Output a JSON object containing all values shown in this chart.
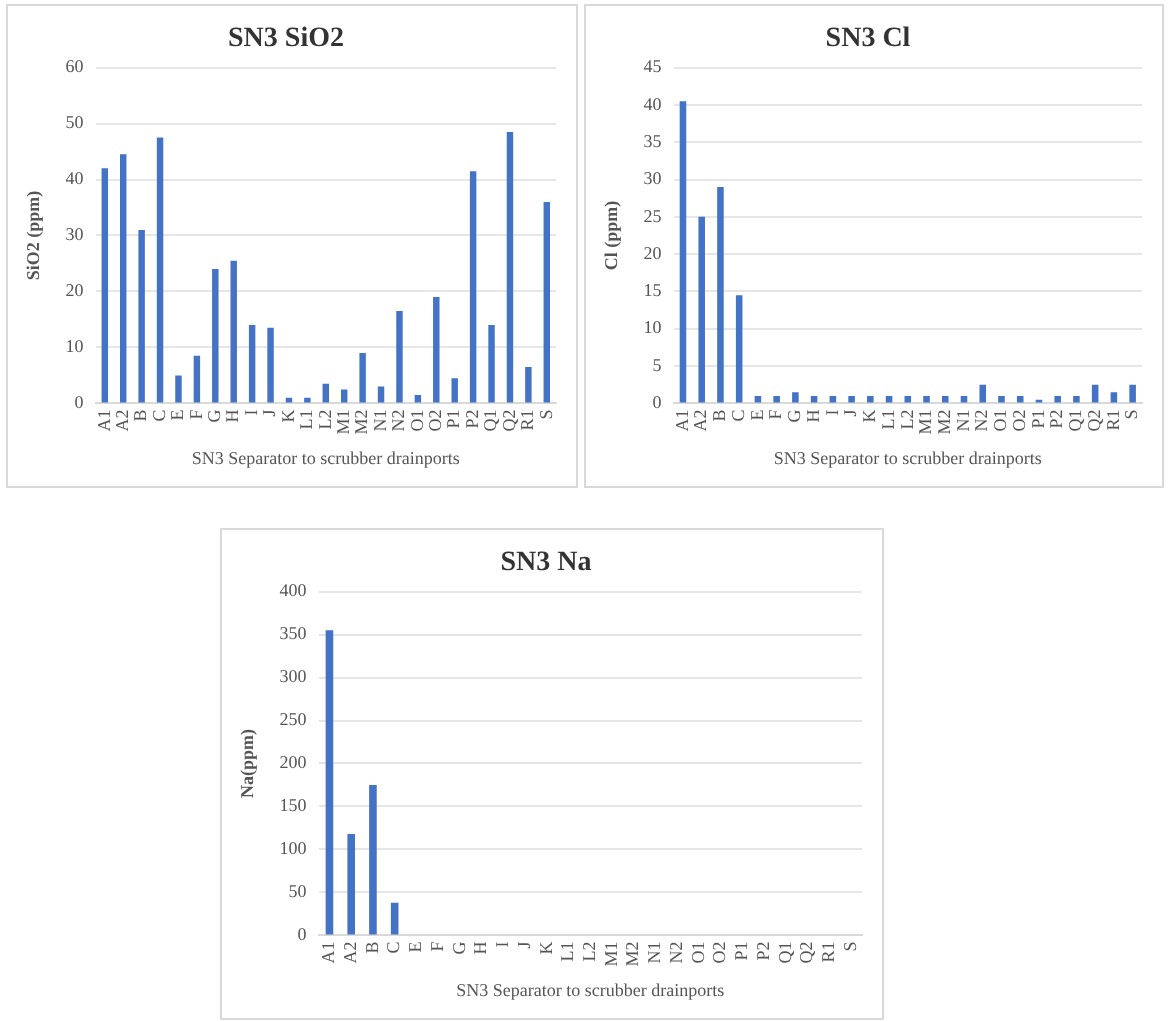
{
  "chart_data": [
    {
      "type": "bar",
      "title": "SN3 SiO2",
      "xlabel": "SN3 Separator to scrubber drainports",
      "ylabel": "SiO2 (ppm)",
      "categories": [
        "A1",
        "A2",
        "B",
        "C",
        "E",
        "F",
        "G",
        "H",
        "I",
        "J",
        "K",
        "L1",
        "L2",
        "M1",
        "M2",
        "N1",
        "N2",
        "O1",
        "O2",
        "P1",
        "P2",
        "Q1",
        "Q2",
        "R1",
        "S"
      ],
      "values": [
        42,
        44.5,
        31,
        47.5,
        5,
        8.5,
        24,
        25.5,
        14,
        13.5,
        1,
        1,
        3.5,
        2.5,
        9,
        3,
        16.5,
        1.5,
        19,
        4.5,
        41.5,
        14,
        48.5,
        6.5,
        36
      ],
      "color": "#4472c4",
      "ylim": [
        0,
        60
      ],
      "yticks": [
        0,
        10,
        20,
        30,
        40,
        50,
        60
      ],
      "grid": "y"
    },
    {
      "type": "bar",
      "title": "SN3 Cl",
      "xlabel": "SN3 Separator to scrubber drainports",
      "ylabel": "Cl (ppm)",
      "categories": [
        "A1",
        "A2",
        "B",
        "C",
        "E",
        "F",
        "G",
        "H",
        "I",
        "J",
        "K",
        "L1",
        "L2",
        "M1",
        "M2",
        "N1",
        "N2",
        "O1",
        "O2",
        "P1",
        "P2",
        "Q1",
        "Q2",
        "R1",
        "S"
      ],
      "values": [
        40.5,
        25,
        29,
        14.5,
        1,
        1,
        1.5,
        1,
        1,
        1,
        1,
        1,
        1,
        1,
        1,
        1,
        2.5,
        1,
        1,
        0.5,
        1,
        1,
        2.5,
        1.5,
        2.5
      ],
      "color": "#4472c4",
      "ylim": [
        0,
        45
      ],
      "yticks": [
        0,
        5,
        10,
        15,
        20,
        25,
        30,
        35,
        40,
        45
      ],
      "grid": "y"
    },
    {
      "type": "bar",
      "title": "SN3 Na",
      "xlabel": "SN3 Separator to scrubber drainports",
      "ylabel": "Na(ppm)",
      "categories": [
        "A1",
        "A2",
        "B",
        "C",
        "E",
        "F",
        "G",
        "H",
        "I",
        "J",
        "K",
        "L1",
        "L2",
        "M1",
        "M2",
        "N1",
        "N2",
        "O1",
        "O2",
        "P1",
        "P2",
        "Q1",
        "Q2",
        "R1",
        "S"
      ],
      "values": [
        355,
        118,
        175,
        38,
        null,
        null,
        null,
        null,
        null,
        null,
        null,
        null,
        null,
        null,
        null,
        null,
        null,
        null,
        null,
        null,
        null,
        null,
        null,
        null,
        null
      ],
      "color": "#4472c4",
      "ylim": [
        0,
        400
      ],
      "yticks": [
        0,
        50,
        100,
        150,
        200,
        250,
        300,
        350,
        400
      ],
      "grid": "y"
    }
  ]
}
